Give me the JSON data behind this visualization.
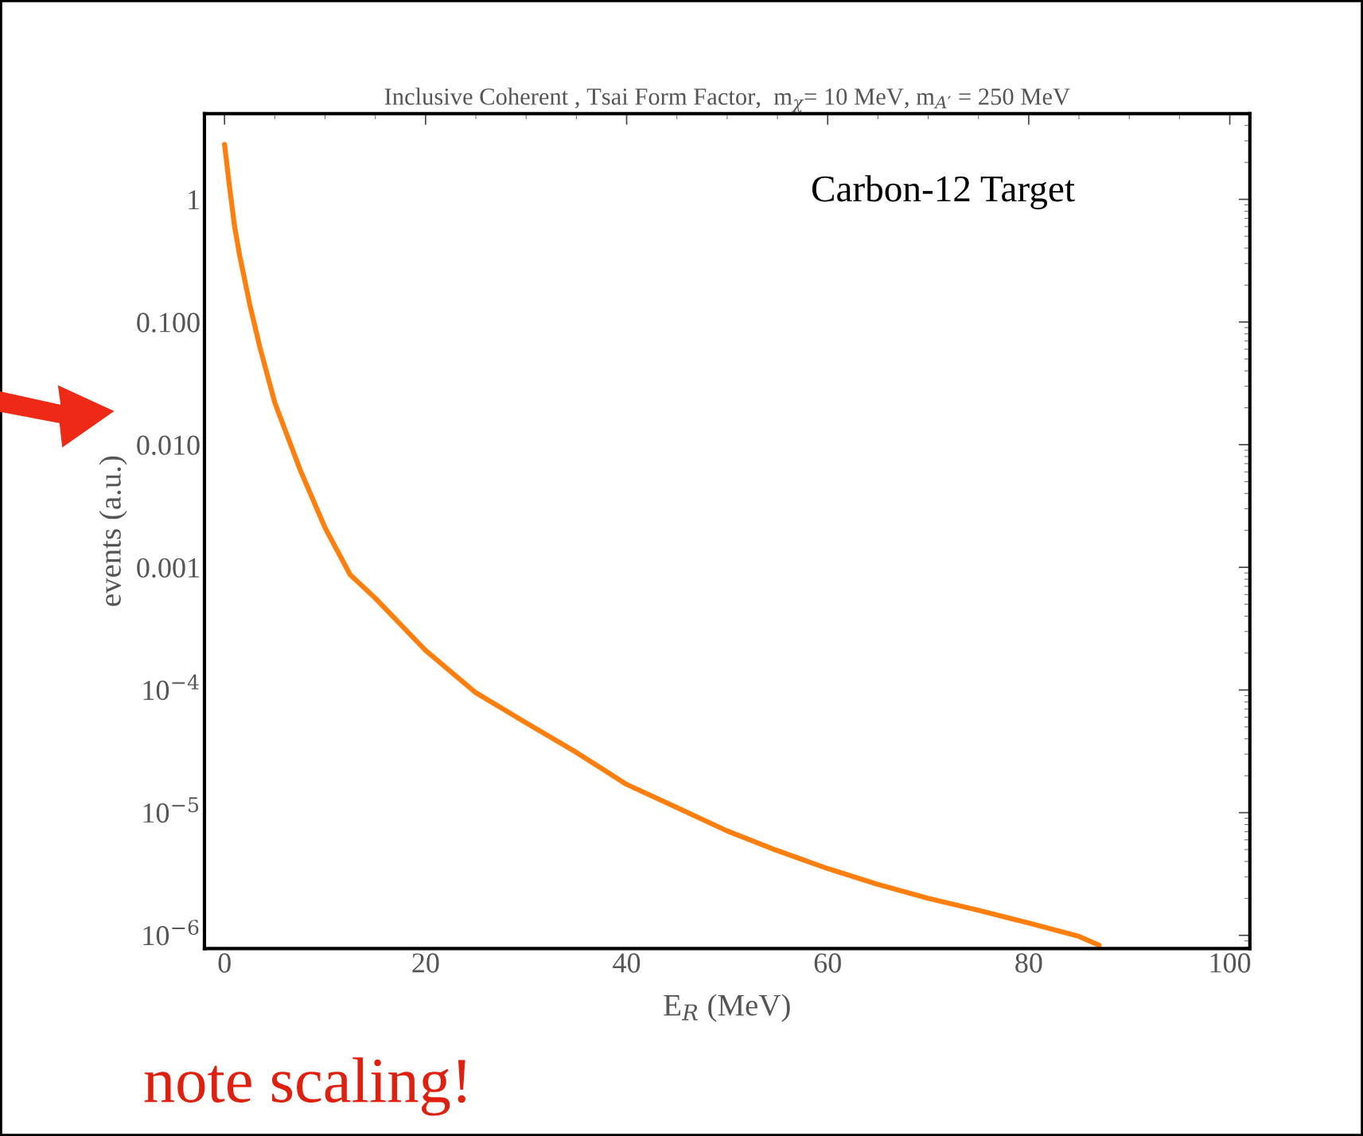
{
  "chart_data": {
    "type": "line",
    "title": "Inclusive Coherent , Tsai Form Factor,  m$_{χ}$= 10 MeV, m$_{A′}$ = 250 MeV",
    "xlabel": "E$_{R}$ (MeV)",
    "ylabel": "events (a.u.)",
    "annotations": [
      "Carbon-12 Target",
      "note scaling!"
    ],
    "x": [
      0,
      0.5,
      1,
      1.5,
      2.5,
      3.5,
      5,
      7.5,
      10,
      12.5,
      15,
      20,
      25,
      30,
      35,
      40,
      45,
      50,
      55,
      60,
      65,
      70,
      75,
      80,
      85,
      87
    ],
    "series": [
      {
        "color": "#ff7f0e",
        "values": [
          2.8,
          1.26,
          0.6,
          0.35,
          0.14,
          0.063,
          0.022,
          0.0063,
          0.0021,
          0.00087,
          0.00056,
          0.00021,
          9.5e-05,
          5.4e-05,
          3.1e-05,
          1.7e-05,
          1.1e-05,
          7.1e-06,
          4.9e-06,
          3.5e-06,
          2.6e-06,
          2e-06,
          1.6e-06,
          1.26e-06,
          9.8e-07,
          8.3e-07
        ]
      }
    ],
    "log": "y",
    "xlim": [
      -2,
      102
    ],
    "ylim": [
      7.8e-07,
      5
    ],
    "xticks": [
      0,
      20,
      40,
      60,
      80,
      100
    ],
    "yticks": [
      1,
      {
        "value": 0.1,
        "label": "0.100"
      },
      {
        "value": 0.01,
        "label": "0.010"
      },
      0.001,
      {
        "value": 0.0001,
        "label": "10$^{−4}$"
      },
      {
        "value": 1e-05,
        "label": "10$^{−5}$"
      },
      {
        "value": 1e-06,
        "label": "10$^{−6}$"
      }
    ],
    "grid": false,
    "legend": false
  }
}
